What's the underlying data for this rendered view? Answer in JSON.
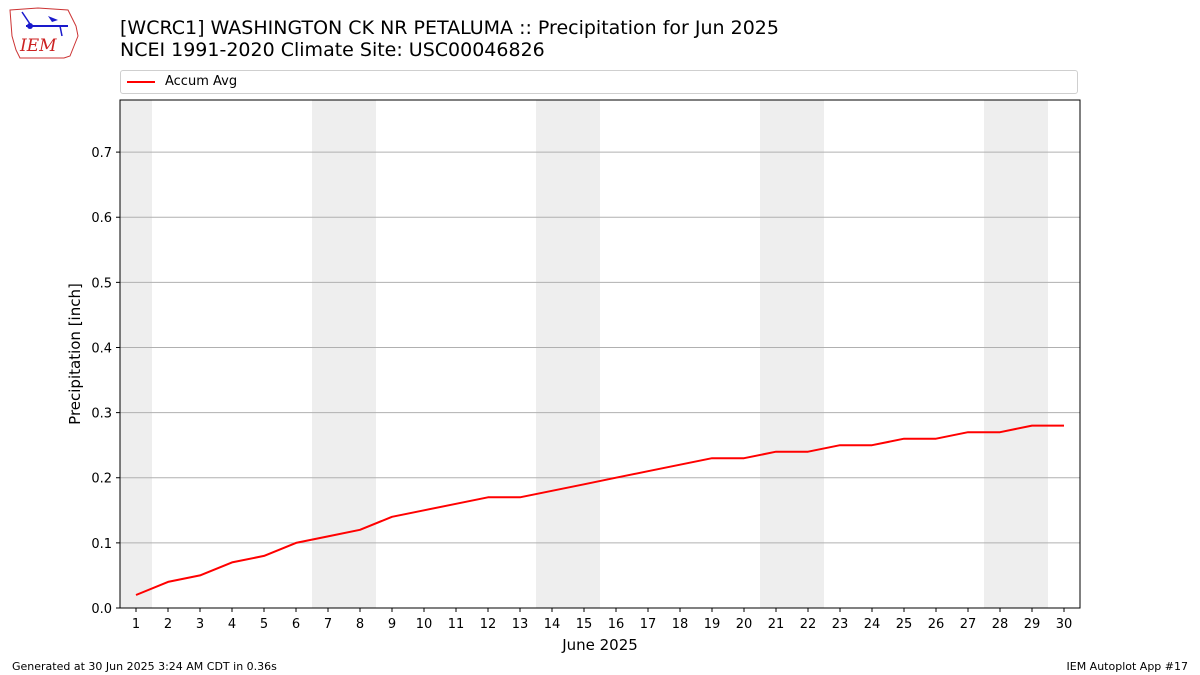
{
  "title": {
    "line1": "[WCRC1] WASHINGTON CK NR PETALUMA :: Precipitation for Jun 2025",
    "line2": "NCEI 1991-2020 Climate Site: USC00046826"
  },
  "logo": {
    "text": "IEM"
  },
  "footer": {
    "left": "Generated at 30 Jun 2025 3:24 AM CDT in 0.36s",
    "right": "IEM Autoplot App #17"
  },
  "colors": {
    "line": "#ff0000",
    "weekend_band": "#eeeeee",
    "grid": "#b0b0b0"
  },
  "chart_data": {
    "type": "line",
    "xlabel": "June 2025",
    "ylabel": "Precipitation [inch]",
    "xlim": [
      0.5,
      30.5
    ],
    "ylim": [
      0,
      0.78
    ],
    "yticks": [
      0.0,
      0.1,
      0.2,
      0.3,
      0.4,
      0.5,
      0.6,
      0.7
    ],
    "ytick_labels": [
      "0.0",
      "0.1",
      "0.2",
      "0.3",
      "0.4",
      "0.5",
      "0.6",
      "0.7"
    ],
    "xticks": [
      1,
      2,
      3,
      4,
      5,
      6,
      7,
      8,
      9,
      10,
      11,
      12,
      13,
      14,
      15,
      16,
      17,
      18,
      19,
      20,
      21,
      22,
      23,
      24,
      25,
      26,
      27,
      28,
      29,
      30
    ],
    "grid": "horizontal",
    "legend": "top",
    "weekend_bands": [
      [
        0.5,
        1.5
      ],
      [
        6.5,
        8.5
      ],
      [
        13.5,
        15.5
      ],
      [
        20.5,
        22.5
      ],
      [
        27.5,
        29.5
      ]
    ],
    "series": [
      {
        "name": "Accum Avg",
        "color": "#ff0000",
        "x": [
          1,
          2,
          3,
          4,
          5,
          6,
          7,
          8,
          9,
          10,
          11,
          12,
          13,
          14,
          15,
          16,
          17,
          18,
          19,
          20,
          21,
          22,
          23,
          24,
          25,
          26,
          27,
          28,
          29,
          30
        ],
        "values": [
          0.02,
          0.04,
          0.05,
          0.07,
          0.08,
          0.1,
          0.11,
          0.12,
          0.14,
          0.15,
          0.16,
          0.17,
          0.17,
          0.18,
          0.19,
          0.2,
          0.21,
          0.22,
          0.23,
          0.23,
          0.24,
          0.24,
          0.25,
          0.25,
          0.26,
          0.26,
          0.27,
          0.27,
          0.28,
          0.28
        ]
      }
    ]
  }
}
